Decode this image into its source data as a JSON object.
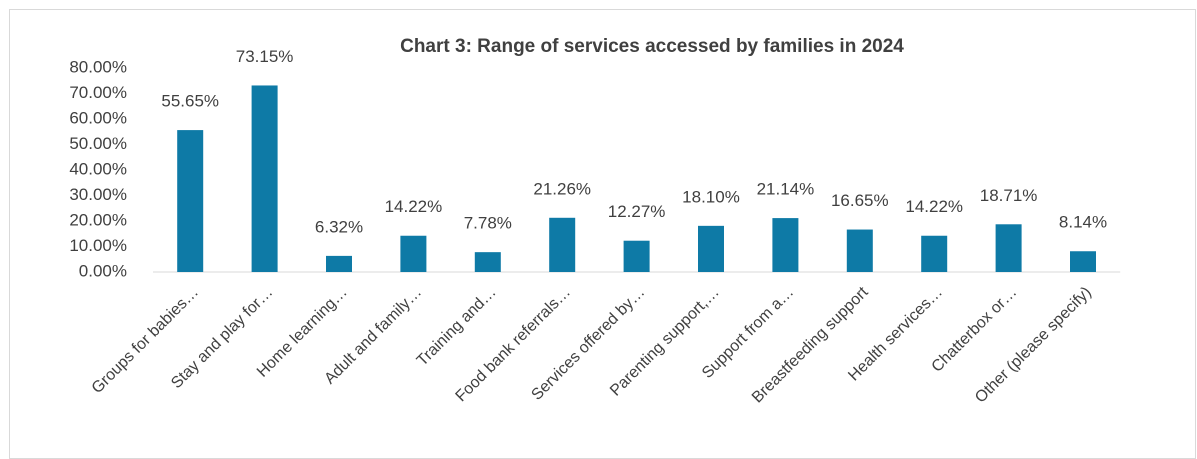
{
  "chart_data": {
    "type": "bar",
    "title": "Chart 3: Range of services accessed by families in  2024",
    "categories": [
      "Groups for babies…",
      "Stay and play for…",
      "Home learning…",
      "Adult and family…",
      "Training and…",
      "Food bank referrals…",
      "Services offered by…",
      "Parenting support,…",
      "Support from a…",
      "Breastfeeding support",
      "Health services…",
      "Chatterbox or…",
      "Other (please specify)"
    ],
    "values": [
      55.65,
      73.15,
      6.32,
      14.22,
      7.78,
      21.26,
      12.27,
      18.1,
      21.14,
      16.65,
      14.22,
      18.71,
      8.14
    ],
    "value_labels": [
      "55.65%",
      "73.15%",
      "6.32%",
      "14.22%",
      "7.78%",
      "21.26%",
      "12.27%",
      "18.10%",
      "21.14%",
      "16.65%",
      "14.22%",
      "18.71%",
      "8.14%"
    ],
    "color": "#0e7aa6",
    "ylim": [
      0,
      80
    ],
    "yticks": [
      {
        "value": 0,
        "label": "0.00%"
      },
      {
        "value": 10,
        "label": "10.00%"
      },
      {
        "value": 20,
        "label": "20.00%"
      },
      {
        "value": 30,
        "label": "30.00%"
      },
      {
        "value": 40,
        "label": "40.00%"
      },
      {
        "value": 50,
        "label": "50.00%"
      },
      {
        "value": 60,
        "label": "60.00%"
      },
      {
        "value": 70,
        "label": "70.00%"
      },
      {
        "value": 80,
        "label": "80.00%"
      }
    ],
    "grid": false
  }
}
